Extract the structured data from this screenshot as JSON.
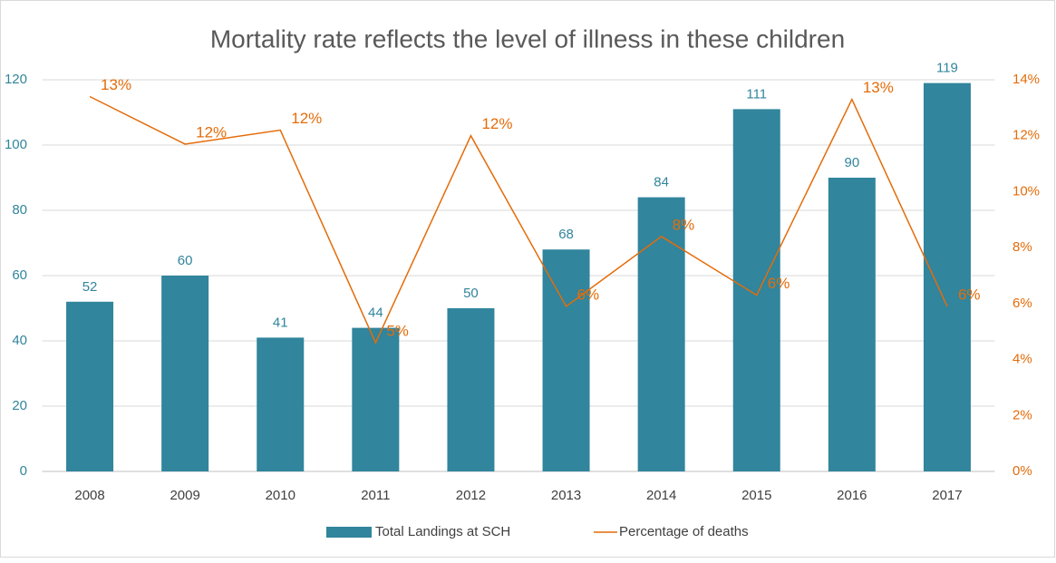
{
  "chart_data": {
    "type": "bar_line",
    "title": "Mortality rate reflects the level of illness in these children",
    "categories": [
      "2008",
      "2009",
      "2010",
      "2011",
      "2012",
      "2013",
      "2014",
      "2015",
      "2016",
      "2017"
    ],
    "series": [
      {
        "name": "Total Landings at SCH",
        "type": "bar",
        "color": "#31859c",
        "values": [
          52,
          60,
          41,
          44,
          50,
          68,
          84,
          111,
          90,
          119
        ]
      },
      {
        "name": "Percentage of deaths",
        "type": "line",
        "axis": "y2",
        "color": "#e46c0a",
        "values": [
          13.4,
          11.7,
          12.2,
          4.6,
          12.0,
          5.9,
          8.4,
          6.3,
          13.3,
          5.9
        ],
        "value_labels": [
          "13%",
          "12%",
          "12%",
          "5%",
          "12%",
          "6%",
          "8%",
          "6%",
          "13%",
          "6%"
        ]
      }
    ],
    "ylim": [
      0,
      120
    ],
    "yticks": [
      0,
      20,
      40,
      60,
      80,
      100,
      120
    ],
    "y2lim": [
      0,
      14
    ],
    "y2ticks": [
      {
        "value": 0,
        "label": "0%"
      },
      {
        "value": 2,
        "label": "2%"
      },
      {
        "value": 4,
        "label": "4%"
      },
      {
        "value": 6,
        "label": "6%"
      },
      {
        "value": 8,
        "label": "8%"
      },
      {
        "value": 10,
        "label": "10%"
      },
      {
        "value": 12,
        "label": "12%"
      },
      {
        "value": 14,
        "label": "14%"
      }
    ],
    "grid": true,
    "legend": "bottom"
  }
}
